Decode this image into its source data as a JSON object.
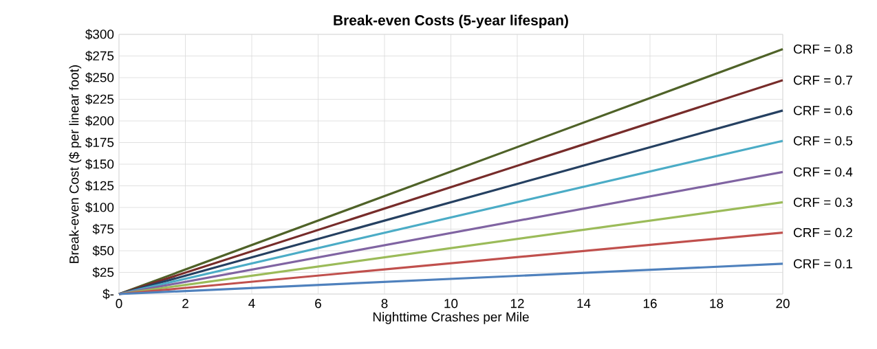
{
  "chart_data": {
    "type": "line",
    "title": "Break-even Costs (5-year lifespan)",
    "xlabel": "Nighttime Crashes per Mile",
    "ylabel": "Break-even Cost ($ per linear foot)",
    "x": [
      0,
      20
    ],
    "series": [
      {
        "name": "CRF = 0.8",
        "color": "#4f6228",
        "values": [
          0,
          283
        ]
      },
      {
        "name": "CRF = 0.7",
        "color": "#772c2a",
        "values": [
          0,
          247
        ]
      },
      {
        "name": "CRF = 0.6",
        "color": "#254061",
        "values": [
          0,
          212
        ]
      },
      {
        "name": "CRF = 0.5",
        "color": "#4bacc6",
        "values": [
          0,
          177
        ]
      },
      {
        "name": "CRF = 0.4",
        "color": "#8064a2",
        "values": [
          0,
          141
        ]
      },
      {
        "name": "CRF = 0.3",
        "color": "#9bbb59",
        "values": [
          0,
          106
        ]
      },
      {
        "name": "CRF = 0.2",
        "color": "#c0504d",
        "values": [
          0,
          71
        ]
      },
      {
        "name": "CRF = 0.1",
        "color": "#4f81bd",
        "values": [
          0,
          35
        ]
      }
    ],
    "xlim": [
      0,
      20
    ],
    "xticks": [
      0,
      2,
      4,
      6,
      8,
      10,
      12,
      14,
      16,
      18,
      20
    ],
    "ylim": [
      0,
      300
    ],
    "yticks": [
      {
        "value": 0,
        "label": "$-"
      },
      {
        "value": 25,
        "label": "$25"
      },
      {
        "value": 50,
        "label": "$50"
      },
      {
        "value": 75,
        "label": "$75"
      },
      {
        "value": 100,
        "label": "$100"
      },
      {
        "value": 125,
        "label": "$125"
      },
      {
        "value": 150,
        "label": "$150"
      },
      {
        "value": 175,
        "label": "$175"
      },
      {
        "value": 200,
        "label": "$200"
      },
      {
        "value": 225,
        "label": "$225"
      },
      {
        "value": 250,
        "label": "$250"
      },
      {
        "value": 275,
        "label": "$275"
      },
      {
        "value": 300,
        "label": "$300"
      }
    ],
    "grid": true,
    "legend": false,
    "marker": "none",
    "line_style": "solid"
  }
}
